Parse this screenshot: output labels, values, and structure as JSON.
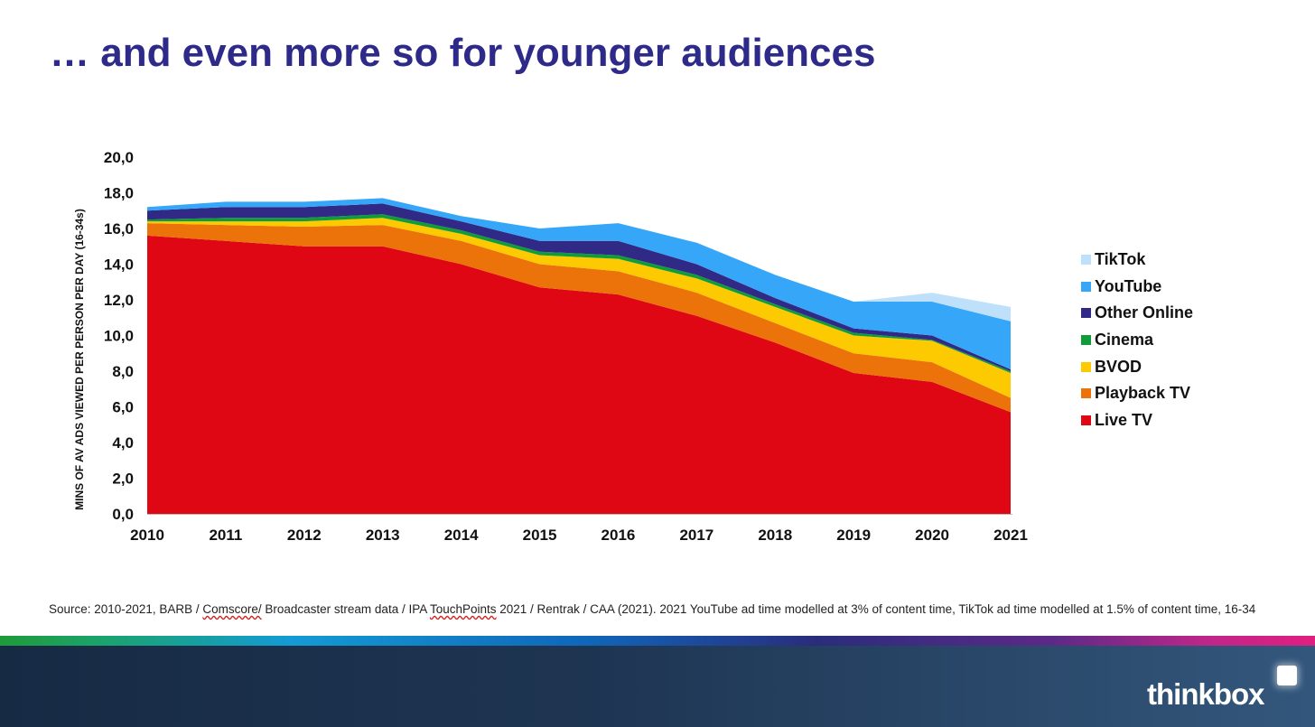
{
  "slide": {
    "title": "… and even more so for younger audiences",
    "source_parts": [
      "Source: 2010-2021, BARB / ",
      "Comscore/",
      "  Broadcaster stream data / IPA ",
      "TouchPoints",
      " 2021 / Rentrak / CAA (2021).  2021 YouTube ad time modelled at 3% of content time, TikTok ad time modelled at 1.5% of content time, 16-34"
    ],
    "logo_text": "thinkbox"
  },
  "chart_data": {
    "type": "area",
    "stacked": true,
    "title": "… and even more so for younger audiences",
    "ylabel": "MINS OF AV ADS VIEWED PER PERSON PER DAY (16-34s)",
    "xlabel": "",
    "ylim": [
      0,
      20
    ],
    "yticks": [
      "0,0",
      "2,0",
      "4,0",
      "6,0",
      "8,0",
      "10,0",
      "12,0",
      "14,0",
      "16,0",
      "18,0",
      "20,0"
    ],
    "x": [
      "2010",
      "2011",
      "2012",
      "2013",
      "2014",
      "2015",
      "2016",
      "2017",
      "2018",
      "2019",
      "2020",
      "2021"
    ],
    "legend_position": "right",
    "grid": false,
    "series": [
      {
        "name": "Live TV",
        "color": "#e00715",
        "values": [
          15.6,
          15.3,
          15.0,
          15.0,
          14.0,
          12.7,
          12.3,
          11.1,
          9.6,
          7.9,
          7.4,
          5.7
        ]
      },
      {
        "name": "Playback TV",
        "color": "#ec720a",
        "values": [
          0.7,
          0.9,
          1.1,
          1.2,
          1.3,
          1.3,
          1.3,
          1.3,
          1.1,
          1.1,
          1.1,
          0.8
        ]
      },
      {
        "name": "BVOD",
        "color": "#fdc900",
        "values": [
          0.1,
          0.2,
          0.3,
          0.4,
          0.4,
          0.5,
          0.7,
          0.8,
          0.9,
          1.0,
          1.2,
          1.4
        ]
      },
      {
        "name": "Cinema",
        "color": "#119c3a",
        "values": [
          0.1,
          0.2,
          0.2,
          0.2,
          0.2,
          0.2,
          0.2,
          0.2,
          0.15,
          0.15,
          0.05,
          0.1
        ]
      },
      {
        "name": "Other Online",
        "color": "#302a86",
        "values": [
          0.5,
          0.6,
          0.6,
          0.6,
          0.5,
          0.6,
          0.8,
          0.6,
          0.35,
          0.25,
          0.25,
          0.1
        ]
      },
      {
        "name": "YouTube",
        "color": "#35a6f8",
        "values": [
          0.2,
          0.3,
          0.3,
          0.3,
          0.3,
          0.7,
          1.0,
          1.2,
          1.3,
          1.5,
          1.9,
          2.7
        ]
      },
      {
        "name": "TikTok",
        "color": "#bfe0fb",
        "values": [
          0,
          0,
          0,
          0,
          0,
          0,
          0,
          0,
          0,
          0,
          0.5,
          0.8
        ]
      }
    ]
  }
}
